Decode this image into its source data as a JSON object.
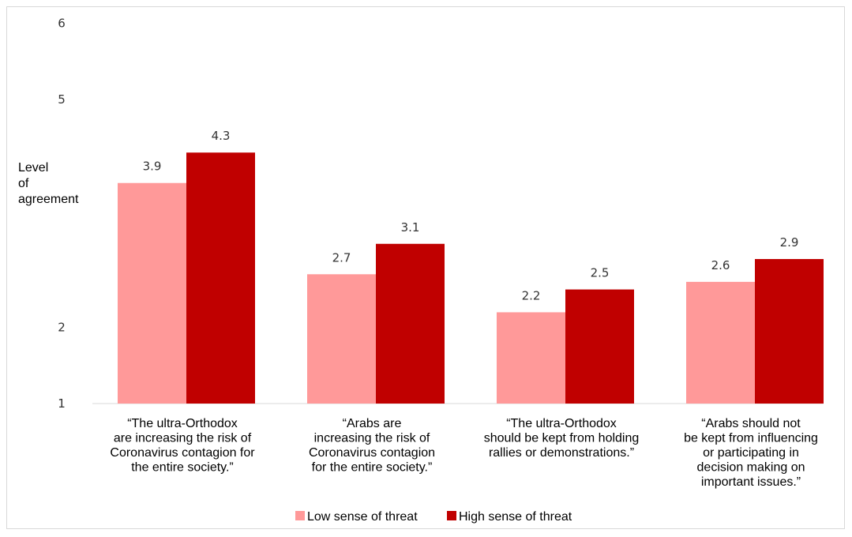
{
  "chart_data": {
    "type": "bar",
    "ylabel_lines": [
      "Level",
      "of",
      "agreement"
    ],
    "y_ticks": [
      "1",
      "2",
      "5",
      "6"
    ],
    "categories": [
      [
        "“The ultra-Orthodox",
        "are increasing the risk of",
        "Coronavirus contagion for",
        "the entire society.”"
      ],
      [
        "“Arabs are",
        "increasing the risk of",
        "Coronavirus contagion",
        "for the entire society.”"
      ],
      [
        "“The ultra-Orthodox",
        "should be kept from holding",
        "rallies or demonstrations.”"
      ],
      [
        "“Arabs should not",
        "be kept from influencing",
        "or participating in",
        "decision making on",
        "important issues.”"
      ]
    ],
    "series": [
      {
        "name": "Low sense of threat",
        "color": "#ff9999",
        "values": [
          3.9,
          2.7,
          2.2,
          2.6
        ],
        "labels": [
          "3.9",
          "2.7",
          "2.2",
          "2.6"
        ]
      },
      {
        "name": "High sense of threat",
        "color": "#c00000",
        "values": [
          4.3,
          3.1,
          2.5,
          2.9
        ],
        "labels": [
          "4.3",
          "3.1",
          "2.5",
          "2.9"
        ]
      }
    ],
    "legend_position": "bottom"
  }
}
